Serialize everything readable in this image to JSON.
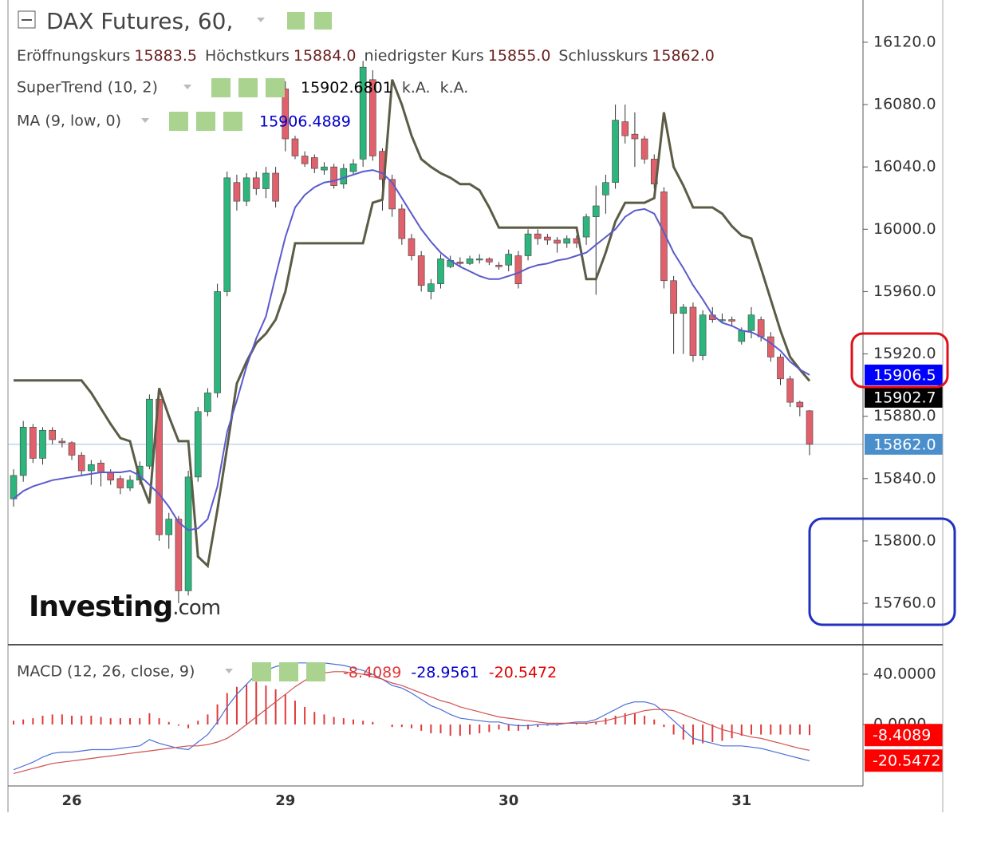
{
  "chart_data": [
    {
      "type": "candlestick",
      "title": "DAX Futures, 60,",
      "info": [
        {
          "name": "Eröffnungskurs",
          "label": "15883.5"
        },
        {
          "name": "Höchstkurs",
          "label": "15884.0"
        },
        {
          "name": "niedrigster Kurs",
          "label": "15855.0"
        },
        {
          "name": "Schlusskurs",
          "label": "15862.0"
        }
      ],
      "categories": [
        null,
        null,
        null,
        null,
        null,
        null,
        "26",
        null,
        null,
        null,
        null,
        null,
        null,
        null,
        null,
        null,
        null,
        null,
        null,
        null,
        null,
        null,
        null,
        null,
        null,
        null,
        null,
        null,
        "29",
        null,
        null,
        null,
        null,
        null,
        null,
        null,
        null,
        null,
        null,
        null,
        null,
        null,
        null,
        null,
        null,
        null,
        null,
        null,
        null,
        null,
        null,
        "30",
        null,
        null,
        null,
        null,
        null,
        null,
        null,
        null,
        null,
        null,
        null,
        null,
        null,
        null,
        null,
        null,
        null,
        null,
        null,
        null,
        null,
        null,
        null,
        "31",
        null,
        null,
        null,
        null,
        null,
        null,
        null
      ],
      "open": [
        15827,
        15842,
        15873,
        15853,
        15871,
        15864,
        15863,
        15855,
        15845,
        15850,
        15844,
        15840,
        15834,
        15839,
        15848,
        15891,
        15804,
        15814,
        15768,
        15841,
        15883,
        15895,
        15960,
        16030,
        16018,
        16033,
        16026,
        16036,
        16090,
        16058,
        16047,
        16046,
        16038,
        16040,
        16029,
        16037,
        16045,
        16096,
        16050,
        16032,
        16013,
        15994,
        15983,
        15960,
        15965,
        15976,
        15979,
        15978,
        15981,
        15981,
        15977,
        15977,
        15983,
        15983,
        15997,
        15995,
        15993,
        15991,
        15994,
        15995,
        16008,
        16022,
        16030,
        16069,
        16061,
        16058,
        16045,
        16024,
        15967,
        15946,
        15950,
        15919,
        15945,
        15942,
        15942,
        15928,
        15935,
        15942,
        15931,
        15918,
        15904,
        15889,
        15883.5
      ],
      "high": [
        15846,
        15877,
        15875,
        15873,
        15873,
        15866,
        15864,
        15857,
        15852,
        15852,
        15846,
        15842,
        15842,
        15851,
        15894,
        15896,
        15818,
        15816,
        15845,
        15886,
        15898,
        15965,
        16037,
        16035,
        16036,
        16037,
        16040,
        16040,
        16095,
        16060,
        16050,
        16048,
        16043,
        16042,
        16042,
        16045,
        16108,
        16102,
        16052,
        16035,
        16016,
        15997,
        15986,
        15968,
        15984,
        15983,
        15982,
        15983,
        15984,
        15982,
        15979,
        15987,
        15986,
        16000,
        16000,
        15997,
        15995,
        15996,
        15996,
        16010,
        16028,
        16035,
        16080,
        16080,
        16075,
        16060,
        16048,
        16027,
        15970,
        15952,
        15953,
        15948,
        15950,
        15946,
        15944,
        15937,
        15950,
        15944,
        15934,
        15920,
        15906,
        15890,
        15884
      ],
      "low": [
        15822,
        15838,
        15850,
        15849,
        15862,
        15860,
        15852,
        15842,
        15836,
        15835,
        15836,
        15830,
        15832,
        15836,
        15846,
        15800,
        15795,
        15760,
        15765,
        15838,
        15880,
        15892,
        15957,
        16012,
        16015,
        16022,
        16020,
        16014,
        16050,
        16045,
        16040,
        16036,
        16035,
        16026,
        16026,
        16035,
        16040,
        16044,
        16012,
        16008,
        15990,
        15980,
        15960,
        15955,
        15962,
        15975,
        15976,
        15977,
        15978,
        15977,
        15974,
        15973,
        15962,
        15980,
        15990,
        15990,
        15985,
        15988,
        15988,
        15990,
        15958,
        16010,
        16026,
        16055,
        16040,
        16042,
        16026,
        15962,
        15920,
        15920,
        15915,
        15916,
        15940,
        15940,
        15938,
        15926,
        15930,
        15928,
        15915,
        15900,
        15886,
        15880,
        15855
      ],
      "close": [
        15842,
        15873,
        15853,
        15871,
        15865,
        15863,
        15855,
        15845,
        15849,
        15844,
        15839,
        15834,
        15839,
        15848,
        15891,
        15804,
        15814,
        15768,
        15841,
        15883,
        15895,
        15960,
        16033,
        16018,
        16033,
        16026,
        16036,
        16018,
        16058,
        16047,
        16042,
        16039,
        16040,
        16028,
        16039,
        16042,
        16104,
        16047,
        16032,
        16013,
        15994,
        15983,
        15964,
        15965,
        15981,
        15980,
        15978,
        15981,
        15981,
        15979,
        15976,
        15984,
        15965,
        15997,
        15994,
        15993,
        15991,
        15994,
        15991,
        16008,
        16015,
        16030,
        16070,
        16060,
        16058,
        16045,
        16029,
        15967,
        15946,
        15950,
        15919,
        15945,
        15942,
        15942,
        15941,
        15935,
        15945,
        15931,
        15918,
        15904,
        15889,
        15886,
        15862
      ],
      "up_color": "#2cb57c",
      "down_color": "#e0606b",
      "indicators": [
        {
          "name": "SuperTrend (10, 2)",
          "color": "#5c5c46",
          "legend_extra": [
            "k.A.",
            "k.A."
          ],
          "values": [
            15903,
            15903,
            15903,
            15903,
            15903,
            15903,
            15903,
            15903,
            15895,
            15885,
            15875,
            15866,
            15864,
            15840,
            15824,
            15898,
            15880,
            15864,
            15864,
            15790,
            15784,
            15820,
            15860,
            15901,
            15915,
            15927,
            15933,
            15942,
            15960,
            15991,
            15991,
            15991,
            15991,
            15991,
            15991,
            15991,
            15991,
            16017,
            16019,
            16096,
            16080,
            16060,
            16045,
            16040,
            16036,
            16033,
            16029,
            16029,
            16025,
            16014,
            16001,
            16001,
            16001,
            16001,
            16001,
            16001,
            16001,
            16001,
            16001,
            15968,
            15968,
            15985,
            16005,
            16017,
            16017,
            16017,
            16020,
            16075,
            16040,
            16028,
            16014,
            16014,
            16014,
            16010,
            16002,
            15996,
            15994,
            15975,
            15955,
            15935,
            15918,
            15910,
            15902.6801
          ]
        },
        {
          "name": "MA (9, low, 0)",
          "color": "#5a5acd",
          "values": [
            15827,
            15832,
            15835,
            15837,
            15839,
            15840,
            15841,
            15842,
            15843,
            15844,
            15844,
            15844,
            15845,
            15842,
            15836,
            15830,
            15822,
            15812,
            15807,
            15808,
            15814,
            15835,
            15870,
            15890,
            15912,
            15930,
            15944,
            15970,
            15995,
            16014,
            16022,
            16027,
            16030,
            16031,
            16033,
            16035,
            16037,
            16038,
            16036,
            16030,
            16020,
            16010,
            16000,
            15992,
            15985,
            15980,
            15976,
            15973,
            15970,
            15968,
            15968,
            15970,
            15972,
            15975,
            15977,
            15978,
            15980,
            15981,
            15983,
            15985,
            15990,
            15995,
            16000,
            16008,
            16012,
            16013,
            16010,
            15998,
            15985,
            15975,
            15964,
            15955,
            15945,
            15940,
            15938,
            15935,
            15934,
            15931,
            15927,
            15922,
            15915,
            15910,
            15906.4889
          ]
        }
      ],
      "ylim": [
        15733.4,
        16147.1
      ],
      "yticks": [
        {
          "value": 16120,
          "label": "16120.0"
        },
        {
          "value": 16080,
          "label": "16080.0"
        },
        {
          "value": 16040,
          "label": "16040.0"
        },
        {
          "value": 16000,
          "label": "16000.0"
        },
        {
          "value": 15960,
          "label": "15960.0"
        },
        {
          "value": 15920,
          "label": "15920.0"
        },
        {
          "value": 15880,
          "label": "15880.0"
        },
        {
          "value": 15840,
          "label": "15840.0"
        },
        {
          "value": 15800,
          "label": "15800.0"
        },
        {
          "value": 15760,
          "label": "15760.0"
        }
      ],
      "price_tags": [
        {
          "value": 15906.5,
          "label": "15906.5",
          "color": "#0000ff"
        },
        {
          "value": 15902.7,
          "label": "15902.7",
          "color": "#000000"
        },
        {
          "value": 15862,
          "label": "15862.0",
          "color": "#4a8fcc",
          "line": true
        }
      ],
      "watermark": {
        "main": "Investing",
        "suffix": ".com"
      }
    },
    {
      "type": "macd",
      "title": "MACD (12, 26, close, 9)",
      "series": [
        {
          "kind": "histogram",
          "color": "#e03a3a",
          "values": [
            3,
            4,
            5,
            7,
            8,
            8,
            7,
            7,
            7,
            6,
            5,
            5,
            5,
            5,
            9,
            5,
            2,
            -1,
            -3,
            3,
            8,
            16,
            25,
            30,
            32,
            34,
            31,
            28,
            24,
            19,
            14,
            10,
            8,
            6,
            5,
            4,
            3,
            2,
            0,
            -2,
            -2,
            -3,
            -5,
            -7,
            -7,
            -9,
            -9,
            -8,
            -7,
            -6,
            -4,
            -5,
            -5,
            -4,
            -2,
            -1,
            -1,
            0,
            1,
            1,
            2,
            5,
            7,
            9,
            9,
            7,
            4,
            -2,
            -8,
            -12,
            -16,
            -15,
            -14,
            -13,
            -11,
            -9,
            -8,
            -8,
            -8,
            -8,
            -8,
            -8,
            -8.4089
          ]
        },
        {
          "kind": "line",
          "color": "#0000cc",
          "line_color": "#4a6ed8",
          "values": [
            -36,
            -33,
            -30,
            -26,
            -23,
            -22,
            -22,
            -21,
            -20,
            -20,
            -20,
            -19,
            -18,
            -17,
            -12,
            -15,
            -17,
            -19,
            -20,
            -14,
            -8,
            2,
            14,
            24,
            32,
            40,
            43,
            46,
            48,
            49,
            49,
            49,
            49,
            48,
            47,
            45,
            43,
            40,
            36,
            31,
            29,
            25,
            20,
            15,
            12,
            8,
            5,
            4,
            3,
            2,
            2,
            0,
            -1,
            -1,
            0,
            0,
            0,
            1,
            2,
            2,
            4,
            8,
            12,
            16,
            18,
            18,
            16,
            10,
            3,
            -4,
            -11,
            -13,
            -15,
            -17,
            -17,
            -17,
            -18,
            -19,
            -21,
            -23,
            -25,
            -27,
            -28.9561
          ]
        },
        {
          "kind": "line",
          "color": "#e00000",
          "line_color": "#d05050",
          "values": [
            -39,
            -37,
            -35,
            -33,
            -31,
            -30,
            -29,
            -28,
            -27,
            -26,
            -25,
            -24,
            -23,
            -22,
            -21,
            -20,
            -19,
            -18,
            -17,
            -17,
            -16,
            -14,
            -11,
            -6,
            0,
            6,
            12,
            18,
            24,
            30,
            35,
            39,
            41,
            42,
            42,
            41,
            40,
            38,
            36,
            33,
            31,
            28,
            25,
            22,
            19,
            17,
            14,
            12,
            10,
            8,
            6,
            5,
            4,
            3,
            2,
            1,
            1,
            1,
            1,
            1,
            2,
            3,
            5,
            7,
            9,
            11,
            12,
            12,
            11,
            8,
            5,
            2,
            -1,
            -4,
            -6,
            -8,
            -10,
            -11,
            -13,
            -15,
            -17,
            -19,
            -20.5472
          ]
        }
      ],
      "tags": [
        0,
        2
      ],
      "tag_color": "#ff0000",
      "ylim": [
        -48.9,
        62.2
      ],
      "yticks": [
        {
          "value": 40,
          "label": "40.0000"
        },
        {
          "value": 0,
          "label": "0.0000"
        }
      ]
    }
  ]
}
